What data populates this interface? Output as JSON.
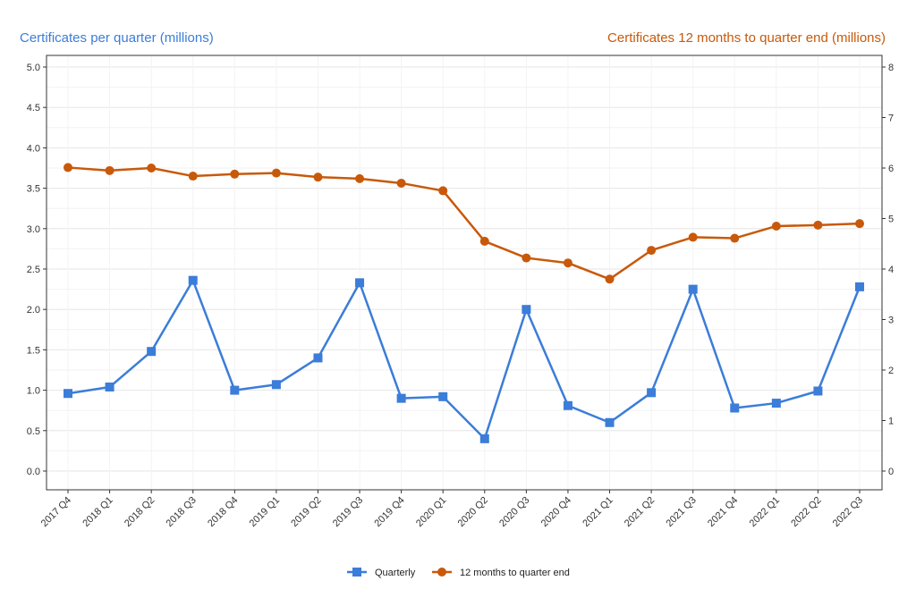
{
  "chart_data": {
    "type": "line",
    "categories": [
      "2017 Q4",
      "2018 Q1",
      "2018 Q2",
      "2018 Q3",
      "2018 Q4",
      "2019 Q1",
      "2019 Q2",
      "2019 Q3",
      "2019 Q4",
      "2020 Q1",
      "2020 Q2",
      "2020 Q3",
      "2020 Q4",
      "2021 Q1",
      "2021 Q2",
      "2021 Q3",
      "2021 Q4",
      "2022 Q1",
      "2022 Q2",
      "2022 Q3"
    ],
    "left_axis": {
      "title": "Certificates per quarter (millions)",
      "ylim": [
        0,
        5
      ],
      "ticks": [
        "0.0",
        "0.5",
        "1.0",
        "1.5",
        "2.0",
        "2.5",
        "3.0",
        "3.5",
        "4.0",
        "4.5",
        "5.0"
      ],
      "color": "#3B7DD8"
    },
    "right_axis": {
      "title": "Certificates 12 months to quarter end (millions)",
      "ylim": [
        0,
        8
      ],
      "ticks": [
        "0",
        "1",
        "2",
        "3",
        "4",
        "5",
        "6",
        "7",
        "8"
      ],
      "color": "#C8590A"
    },
    "series": [
      {
        "name": "Quarterly",
        "axis": "left",
        "marker": "square",
        "color": "#3B7DD8",
        "values": [
          0.96,
          1.04,
          1.48,
          2.36,
          1.0,
          1.07,
          1.4,
          2.33,
          0.9,
          0.92,
          0.4,
          2.0,
          0.81,
          0.6,
          0.97,
          2.25,
          0.78,
          0.84,
          0.99,
          2.28
        ]
      },
      {
        "name": "12 months to quarter end",
        "axis": "right",
        "marker": "circle",
        "color": "#C8590A",
        "values": [
          6.01,
          5.95,
          6.0,
          5.84,
          5.88,
          5.9,
          5.82,
          5.79,
          5.7,
          5.55,
          4.55,
          4.22,
          4.12,
          3.8,
          4.37,
          4.63,
          4.61,
          4.85,
          4.87,
          4.9
        ]
      }
    ],
    "grid": true,
    "legend_position": "bottom-center"
  }
}
